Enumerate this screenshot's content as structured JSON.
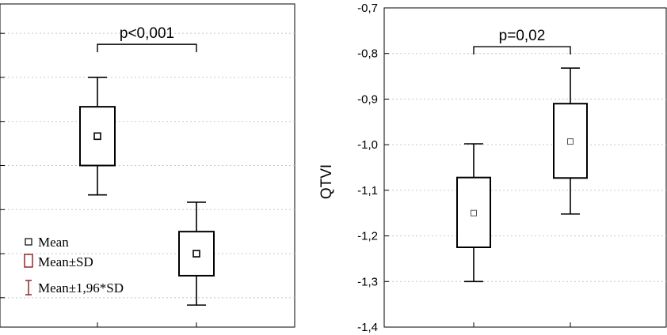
{
  "chart_data": [
    {
      "type": "box",
      "title": "",
      "xlabel": "",
      "ylabel": "",
      "grid": "horizontal dotted",
      "categories": [
        "",
        ""
      ],
      "series": [
        {
          "values": [
            {
              "mean": 0.82,
              "sd_low": 0.78,
              "sd_high": 0.86,
              "ci_low": 0.74,
              "ci_high": 0.9
            },
            {
              "mean": 0.66,
              "sd_low": 0.63,
              "sd_high": 0.69,
              "ci_low": 0.59,
              "ci_high": 0.73
            }
          ]
        }
      ],
      "ylim": [
        0.56,
        1.0
      ],
      "gridlines": [
        0.6,
        0.66,
        0.72,
        0.78,
        0.84,
        0.9,
        0.96
      ],
      "annotation": {
        "text": "p<0,001",
        "between": [
          0,
          1
        ],
        "y": 0.945
      },
      "legend": {
        "placement": "bottom-left",
        "items": [
          {
            "label": "Mean",
            "symbol": "small-square",
            "color": "#000000"
          },
          {
            "label": "Mean±SD",
            "symbol": "box",
            "color": "#8b1a1a"
          },
          {
            "label": "Mean±1,96*SD",
            "symbol": "whisker",
            "color": "#8b1a1a"
          }
        ]
      }
    },
    {
      "type": "box",
      "title": "",
      "xlabel": "",
      "ylabel": "QTVI",
      "grid": "horizontal dotted",
      "categories": [
        "",
        ""
      ],
      "series": [
        {
          "values": [
            {
              "mean": -1.15,
              "sd_low": -1.225,
              "sd_high": -1.072,
              "ci_low": -1.3,
              "ci_high": -0.998
            },
            {
              "mean": -0.993,
              "sd_low": -1.073,
              "sd_high": -0.91,
              "ci_low": -1.152,
              "ci_high": -0.832
            }
          ]
        }
      ],
      "ylim": [
        -1.4,
        -0.7
      ],
      "yticks": [
        -0.7,
        -0.8,
        -0.9,
        -1.0,
        -1.1,
        -1.2,
        -1.3,
        -1.4
      ],
      "ytick_labels": [
        "-0,7",
        "-0,8",
        "-0,9",
        "-1,0",
        "-1,1",
        "-1,2",
        "-1,3",
        "-1,4"
      ],
      "annotation": {
        "text": "p=0,02",
        "between": [
          0,
          1
        ],
        "y": -0.785
      }
    }
  ]
}
